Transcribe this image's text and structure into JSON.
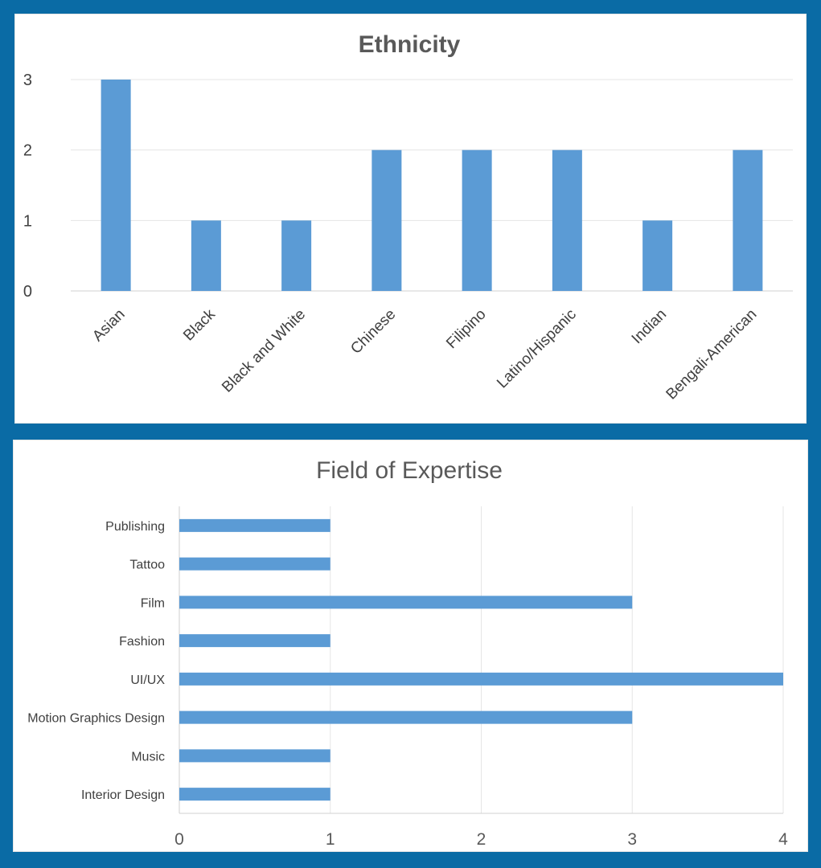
{
  "chart_data": [
    {
      "type": "bar",
      "orientation": "vertical",
      "title": "Ethnicity",
      "categories": [
        "Asian",
        "Black",
        "Black and White",
        "Chinese",
        "Filipino",
        "Latino/Hispanic",
        "Indian",
        "Bengali-American"
      ],
      "values": [
        3,
        1,
        1,
        2,
        2,
        2,
        1,
        2
      ],
      "yticks": [
        "0",
        "1",
        "2",
        "3"
      ],
      "ylim": [
        0,
        3
      ],
      "grid": true,
      "legend": "none",
      "color": "#5b9bd5"
    },
    {
      "type": "bar",
      "orientation": "horizontal",
      "title": "Field of Expertise",
      "categories": [
        "Publishing",
        "Tattoo",
        "Film",
        "Fashion",
        "UI/UX",
        "Motion Graphics Design",
        "Music",
        "Interior Design"
      ],
      "values": [
        1,
        1,
        3,
        1,
        4,
        3,
        1,
        1
      ],
      "xticks": [
        "0",
        "1",
        "2",
        "3",
        "4"
      ],
      "xlim": [
        0,
        4
      ],
      "grid": true,
      "legend": "none",
      "color": "#5b9bd5"
    }
  ],
  "colors": {
    "frame": "#0a6ba5",
    "panel": "#ffffff",
    "bar": "#5b9bd5"
  }
}
